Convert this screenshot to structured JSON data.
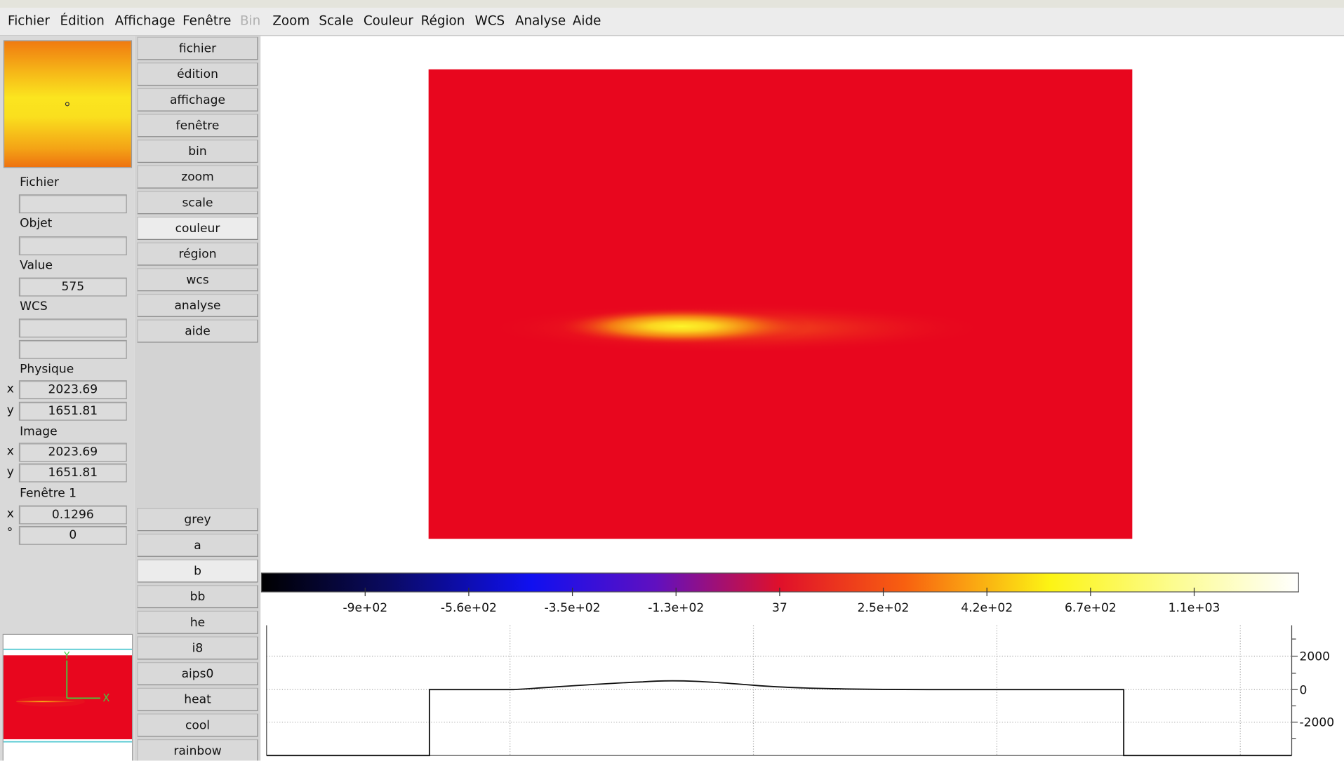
{
  "menu": [
    {
      "label": "Fichier"
    },
    {
      "label": "Édition"
    },
    {
      "label": "Affichage"
    },
    {
      "label": "Fenêtre"
    },
    {
      "label": "Bin",
      "enabled": false
    },
    {
      "label": "Zoom"
    },
    {
      "label": "Scale"
    },
    {
      "label": "Couleur"
    },
    {
      "label": "Région"
    },
    {
      "label": "WCS"
    },
    {
      "label": "Analyse"
    },
    {
      "label": "Aide"
    }
  ],
  "panel": {
    "file": "Fichier",
    "object": "Objet",
    "value_label": "Value",
    "value": "575",
    "wcs": "WCS",
    "physical": {
      "label": "Physique",
      "x_axis": "x",
      "x": "2023.69",
      "y_axis": "y",
      "y": "1651.81"
    },
    "image": {
      "label": "Image",
      "x_axis": "x",
      "x": "2023.69",
      "y_axis": "y",
      "y": "1651.81"
    },
    "frame": {
      "label": "Fenêtre 1",
      "zoom_axis": "x",
      "zoom": "0.1296",
      "angle_axis": "°",
      "angle": "0"
    }
  },
  "buttons": [
    {
      "label": "fichier"
    },
    {
      "label": "édition"
    },
    {
      "label": "affichage"
    },
    {
      "label": "fenêtre"
    },
    {
      "label": "bin"
    },
    {
      "label": "zoom"
    },
    {
      "label": "scale"
    },
    {
      "label": "couleur",
      "selected": true
    },
    {
      "label": "région"
    },
    {
      "label": "wcs"
    },
    {
      "label": "analyse"
    },
    {
      "label": "aide"
    }
  ],
  "colormaps": [
    {
      "label": "grey"
    },
    {
      "label": "a"
    },
    {
      "label": "b",
      "selected": true
    },
    {
      "label": "bb"
    },
    {
      "label": "he"
    },
    {
      "label": "i8"
    },
    {
      "label": "aips0"
    },
    {
      "label": "heat"
    },
    {
      "label": "cool"
    },
    {
      "label": "rainbow"
    }
  ],
  "magnifier": {
    "x_label": "X",
    "y_label": "Y"
  },
  "colorbar_labels": [
    "-9e+02",
    "-5.6e+02",
    "-3.5e+02",
    "-1.3e+02",
    "37",
    "2.5e+02",
    "4.2e+02",
    "6.7e+02",
    "1.1e+03"
  ],
  "graph_ticks": [
    "2000",
    "0",
    "-2000"
  ]
}
